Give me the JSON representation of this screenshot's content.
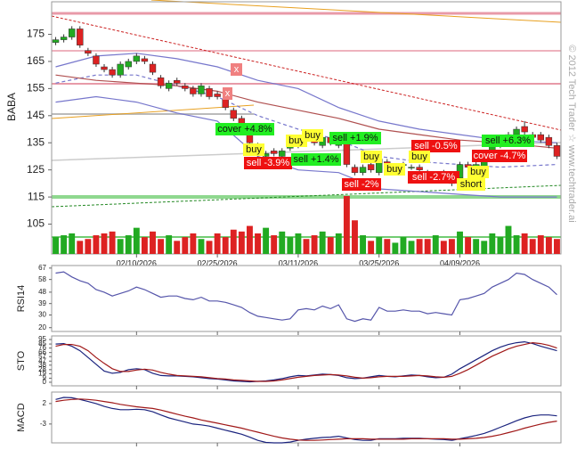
{
  "chart_data": {
    "type": "candlestick",
    "ylabel": "BABA",
    "watermark": "© 2012 Tech Trader ☆ www.techtrader.ai",
    "ylim": [
      94,
      187
    ],
    "yticks": [
      175,
      165,
      155,
      145,
      135,
      125,
      115,
      105
    ],
    "categories": [
      null,
      null,
      null,
      null,
      null,
      null,
      null,
      null,
      null,
      null,
      "02/10/2026",
      null,
      null,
      null,
      null,
      null,
      null,
      null,
      null,
      null,
      "02/25/2026",
      null,
      null,
      null,
      null,
      null,
      null,
      null,
      null,
      null,
      "03/11/2026",
      null,
      null,
      null,
      null,
      null,
      null,
      null,
      null,
      null,
      "03/25/2026",
      null,
      null,
      null,
      null,
      null,
      null,
      null,
      null,
      null,
      "04/09/2026",
      null,
      null,
      null,
      null,
      null,
      null,
      null,
      null,
      null,
      null,
      null,
      null
    ],
    "up_color": "#22aa22",
    "down_color": "#dd2222",
    "open": [
      172,
      173,
      174,
      177,
      169,
      167,
      163,
      162,
      160,
      163,
      165,
      166,
      164,
      159,
      155,
      158,
      156,
      155,
      153,
      155,
      153,
      151,
      147,
      144,
      141,
      134,
      130,
      132,
      130,
      133,
      134,
      137,
      136,
      134,
      137,
      134,
      135,
      126,
      124,
      127,
      124,
      128,
      125,
      127,
      126,
      126,
      124,
      122,
      124,
      121,
      122,
      127,
      125,
      126,
      129,
      134,
      137,
      138,
      141,
      138,
      138,
      137,
      134
    ],
    "high": [
      174,
      175,
      178,
      178,
      170,
      168,
      164,
      163,
      165,
      166,
      168,
      167,
      165,
      160,
      158,
      159,
      157,
      156,
      157,
      156,
      154,
      152,
      148,
      145,
      142,
      135,
      132,
      133,
      133,
      135,
      137,
      138,
      137,
      138,
      138,
      136,
      136,
      127,
      127,
      128,
      130,
      129,
      127,
      128,
      127,
      127,
      125,
      124,
      125,
      122,
      128,
      128,
      128,
      129,
      136,
      138,
      139,
      141,
      143,
      139,
      139,
      138,
      135
    ],
    "low": [
      171,
      172,
      173,
      170,
      167,
      163,
      161,
      159,
      159,
      162,
      164,
      164,
      160,
      155,
      154,
      156,
      154,
      152,
      152,
      151,
      151,
      147,
      143,
      141,
      134,
      130,
      129,
      130,
      129,
      132,
      133,
      135,
      134,
      133,
      134,
      133,
      126,
      123,
      123,
      124,
      123,
      125,
      124,
      125,
      125,
      124,
      122,
      121,
      121,
      119,
      121,
      125,
      124,
      125,
      128,
      133,
      136,
      137,
      138,
      136,
      135,
      133,
      129
    ],
    "close": [
      173,
      174,
      177,
      171,
      168,
      164,
      162,
      160,
      164,
      165,
      167,
      165,
      161,
      156,
      157,
      157,
      155,
      153,
      156,
      152,
      152,
      148,
      144,
      142,
      135,
      131,
      131,
      131,
      132,
      134,
      136,
      136,
      135,
      137,
      135,
      135,
      127,
      124,
      126,
      125,
      129,
      126,
      126,
      127,
      126,
      125,
      123,
      123,
      122,
      120,
      127,
      126,
      127,
      128,
      135,
      137,
      138,
      140,
      139,
      137,
      136,
      134,
      130
    ],
    "volume": [
      18,
      20,
      22,
      14,
      16,
      20,
      22,
      24,
      16,
      20,
      28,
      18,
      24,
      16,
      20,
      14,
      18,
      22,
      16,
      14,
      22,
      18,
      26,
      24,
      30,
      22,
      28,
      20,
      24,
      18,
      22,
      16,
      20,
      24,
      18,
      22,
      62,
      36,
      20,
      14,
      18,
      16,
      12,
      18,
      14,
      16,
      16,
      20,
      14,
      16,
      24,
      18,
      16,
      14,
      22,
      18,
      30,
      20,
      22,
      16,
      20,
      18,
      16
    ],
    "overlays": {
      "x": [
        0,
        5,
        10,
        15,
        20,
        25,
        30,
        35,
        40,
        45,
        50,
        55,
        62
      ],
      "series": [
        {
          "color": "#7777cc",
          "values": [
            163,
            167,
            168,
            166,
            163,
            158,
            155,
            148,
            143,
            140,
            138,
            136,
            135
          ]
        },
        {
          "color": "#7777cc",
          "values": [
            150,
            152,
            150,
            146,
            143,
            130,
            125,
            124,
            118,
            117,
            116,
            115,
            115
          ]
        },
        {
          "color": "#7777cc",
          "dash": true,
          "values": [
            157,
            160,
            160,
            156,
            152,
            145,
            140,
            136,
            130,
            128,
            127,
            126,
            127
          ]
        },
        {
          "color": "#b05050",
          "values": [
            160,
            158,
            157,
            156,
            154,
            150,
            147,
            144,
            140,
            138,
            136,
            135,
            133
          ]
        }
      ]
    },
    "annotations": [
      {
        "text": "x",
        "color": "#f08080",
        "text_color": "#fff"
      },
      {
        "text": "x",
        "color": "#f08080",
        "text_color": "#fff"
      },
      {
        "text": "cover +4.8%",
        "color": "#22ee22",
        "text_color": "#111"
      },
      {
        "text": "buy",
        "color": "#ffff33",
        "text_color": "#111"
      },
      {
        "text": "sell -3.9%",
        "color": "#ee1111",
        "text_color": "#fff"
      },
      {
        "text": "buy",
        "color": "#ffff33",
        "text_color": "#111"
      },
      {
        "text": "buy",
        "color": "#ffff33",
        "text_color": "#111"
      },
      {
        "text": "sell +1.9%",
        "color": "#22ee22",
        "text_color": "#111"
      },
      {
        "text": "sell +1.4%",
        "color": "#22ee22",
        "text_color": "#111"
      },
      {
        "text": "buy",
        "color": "#ffff33",
        "text_color": "#111"
      },
      {
        "text": "buy",
        "color": "#ffff33",
        "text_color": "#111"
      },
      {
        "text": "sell -2%",
        "color": "#ee1111",
        "text_color": "#fff"
      },
      {
        "text": "sell -0.5%",
        "color": "#ee1111",
        "text_color": "#fff"
      },
      {
        "text": "buy",
        "color": "#ffff33",
        "text_color": "#111"
      },
      {
        "text": "sell -2.7%",
        "color": "#ee1111",
        "text_color": "#fff"
      },
      {
        "text": "sell +6.3%",
        "color": "#22ee22",
        "text_color": "#111"
      },
      {
        "text": "cover -4.7%",
        "color": "#ee1111",
        "text_color": "#fff"
      },
      {
        "text": "buy",
        "color": "#ffff33",
        "text_color": "#111"
      },
      {
        "text": "short",
        "color": "#ffff33",
        "text_color": "#111"
      }
    ],
    "panels": [
      {
        "label": "RSI14",
        "ylim": [
          17,
          69
        ],
        "yticks": [
          67,
          58,
          48,
          39,
          30,
          20
        ],
        "series": [
          {
            "color": "#5555aa",
            "values": [
              63,
              64,
              60,
              57,
              55,
              50,
              48,
              45,
              47,
              49,
              52,
              50,
              47,
              44,
              45,
              45,
              43,
              42,
              44,
              41,
              41,
              40,
              38,
              36,
              32,
              29,
              28,
              27,
              26,
              27,
              34,
              35,
              34,
              37,
              35,
              38,
              27,
              25,
              27,
              26,
              36,
              33,
              33,
              34,
              33,
              33,
              31,
              32,
              31,
              30,
              42,
              43,
              45,
              47,
              52,
              55,
              58,
              63,
              62,
              58,
              55,
              52,
              46
            ]
          }
        ]
      },
      {
        "label": "STO",
        "ylim": [
          -8,
          103
        ],
        "yticks": [
          95,
          85,
          76,
          66,
          57,
          47,
          38,
          28,
          19,
          9,
          0
        ],
        "series": [
          {
            "color": "#1a237e",
            "values": [
              85,
              86,
              80,
              70,
              55,
              40,
              25,
              20,
              22,
              28,
              30,
              28,
              20,
              15,
              14,
              14,
              13,
              12,
              10,
              8,
              7,
              5,
              3,
              2,
              1,
              2,
              3,
              5,
              8,
              12,
              15,
              14,
              16,
              18,
              17,
              15,
              10,
              8,
              9,
              12,
              15,
              13,
              12,
              14,
              16,
              15,
              12,
              10,
              11,
              18,
              30,
              40,
              50,
              60,
              70,
              78,
              84,
              88,
              90,
              86,
              80,
              75,
              70
            ]
          },
          {
            "color": "#a01818",
            "values": [
              80,
              84,
              84,
              80,
              70,
              55,
              42,
              30,
              24,
              24,
              27,
              29,
              27,
              22,
              18,
              15,
              14,
              13,
              12,
              10,
              8,
              7,
              5,
              4,
              3,
              2,
              2,
              3,
              5,
              8,
              11,
              13,
              15,
              16,
              17,
              16,
              14,
              11,
              9,
              10,
              12,
              13,
              13,
              13,
              14,
              15,
              14,
              12,
              11,
              13,
              20,
              28,
              38,
              48,
              58,
              66,
              74,
              80,
              84,
              88,
              86,
              82,
              76
            ]
          }
        ]
      },
      {
        "label": "MACD",
        "ylim": [
          -7.6,
          4.8
        ],
        "yticks": [
          2,
          -3
        ],
        "series": [
          {
            "color": "#1a237e",
            "values": [
              3,
              3.5,
              3.4,
              3,
              2.5,
              2,
              1.3,
              0.8,
              0.5,
              0.5,
              0.6,
              0.5,
              0,
              -0.8,
              -1.5,
              -2,
              -2.5,
              -3,
              -3.2,
              -3.5,
              -4,
              -4.5,
              -5,
              -5.5,
              -6.2,
              -7,
              -7.5,
              -7.6,
              -7.6,
              -7.4,
              -7,
              -6.7,
              -6.5,
              -6.3,
              -6.2,
              -6,
              -6.4,
              -6.8,
              -7,
              -7,
              -6.6,
              -6.6,
              -6.6,
              -6.5,
              -6.5,
              -6.5,
              -6.6,
              -6.7,
              -6.8,
              -7,
              -6.6,
              -6.2,
              -5.8,
              -5.3,
              -4.6,
              -3.8,
              -3,
              -2.2,
              -1.5,
              -1,
              -0.8,
              -0.8,
              -1
            ]
          },
          {
            "color": "#a01818",
            "values": [
              2.5,
              2.8,
              3,
              3.1,
              3,
              2.8,
              2.5,
              2.2,
              1.8,
              1.5,
              1.2,
              1,
              0.8,
              0.4,
              -0.1,
              -0.6,
              -1.1,
              -1.5,
              -2,
              -2.4,
              -2.8,
              -3.2,
              -3.6,
              -4,
              -4.5,
              -5,
              -5.5,
              -6,
              -6.4,
              -6.7,
              -6.9,
              -7,
              -7,
              -6.9,
              -6.8,
              -6.7,
              -6.6,
              -6.6,
              -6.6,
              -6.7,
              -6.7,
              -6.7,
              -6.7,
              -6.7,
              -6.6,
              -6.6,
              -6.6,
              -6.6,
              -6.6,
              -6.7,
              -6.7,
              -6.6,
              -6.5,
              -6.3,
              -6,
              -5.6,
              -5.1,
              -4.6,
              -4,
              -3.5,
              -3,
              -2.6,
              -2.3
            ]
          }
        ]
      }
    ]
  }
}
